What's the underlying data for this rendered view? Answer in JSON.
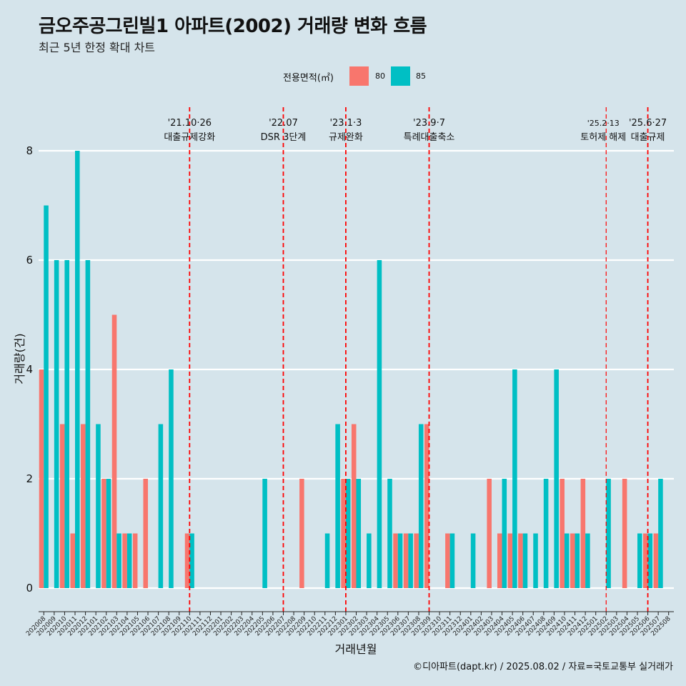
{
  "title": "금오주공그린빌1 아파트(2002) 거래량 변화 흐름",
  "subtitle": "최근 5년 한정 확대 차트",
  "credit": "©디아파트(dapt.kr) / 2025.08.02 / 자료=국토교통부 실거래가",
  "colors": {
    "s80": "#F8766D",
    "s85": "#00BFC4",
    "event_line": "#ff0000",
    "background": "#d5e4eb"
  },
  "legend": {
    "title": "전용면적(㎡)",
    "items": [
      "80",
      "85"
    ]
  },
  "chart_data": {
    "type": "bar",
    "xlabel": "거래년월",
    "ylabel": "거래량(건)",
    "ylim": [
      0,
      8
    ],
    "yticks": [
      0,
      2,
      4,
      6,
      8
    ],
    "grid": true,
    "legend_position": "top",
    "categories": [
      "202008",
      "202009",
      "202010",
      "202011",
      "202012",
      "202101",
      "202102",
      "202103",
      "202104",
      "202105",
      "202106",
      "202107",
      "202108",
      "202109",
      "202110",
      "202111",
      "202112",
      "202201",
      "202202",
      "202203",
      "202204",
      "202205",
      "202206",
      "202207",
      "202208",
      "202209",
      "202210",
      "202211",
      "202212",
      "202301",
      "202302",
      "202303",
      "202304",
      "202305",
      "202306",
      "202307",
      "202308",
      "202309",
      "202310",
      "202311",
      "202312",
      "202401",
      "202402",
      "202403",
      "202404",
      "202405",
      "202406",
      "202407",
      "202408",
      "202409",
      "202410",
      "202411",
      "202412",
      "202501",
      "202502",
      "202503",
      "202504",
      "202505",
      "202506",
      "202507",
      "202508"
    ],
    "series": [
      {
        "name": "80",
        "color": "#F8766D",
        "values": [
          4,
          0,
          3,
          1,
          3,
          0,
          2,
          5,
          1,
          1,
          2,
          0,
          0,
          0,
          1,
          0,
          0,
          0,
          0,
          0,
          0,
          0,
          0,
          0,
          0,
          2,
          0,
          0,
          0,
          2,
          3,
          0,
          0,
          0,
          1,
          1,
          1,
          3,
          0,
          1,
          0,
          0,
          0,
          2,
          1,
          1,
          1,
          0,
          0,
          0,
          2,
          1,
          2,
          0,
          0,
          0,
          2,
          0,
          1,
          1,
          0
        ]
      },
      {
        "name": "85",
        "color": "#00BFC4",
        "values": [
          7,
          6,
          6,
          8,
          6,
          3,
          2,
          1,
          1,
          0,
          0,
          3,
          4,
          0,
          1,
          0,
          0,
          0,
          0,
          0,
          0,
          2,
          0,
          0,
          0,
          0,
          0,
          1,
          3,
          2,
          2,
          1,
          6,
          2,
          1,
          1,
          3,
          0,
          0,
          1,
          0,
          1,
          0,
          0,
          2,
          4,
          1,
          1,
          2,
          4,
          1,
          1,
          1,
          0,
          2,
          0,
          0,
          1,
          1,
          2,
          0
        ]
      }
    ],
    "annotations": [
      {
        "category": "202110",
        "date": "'21.10·26",
        "label": "대출규제강화"
      },
      {
        "category": "202207",
        "date": "'22.07",
        "label": "DSR 3단계"
      },
      {
        "category": "202301",
        "date": "'23.1·3",
        "label": "규제완화"
      },
      {
        "category": "202309",
        "date": "'23.9·7",
        "label": "특례대출축소"
      },
      {
        "category": "202502",
        "date": "'25.2·13",
        "label": "토허제 해제"
      },
      {
        "category": "202506",
        "date": "'25.6·27",
        "label": "대출규제"
      }
    ]
  }
}
